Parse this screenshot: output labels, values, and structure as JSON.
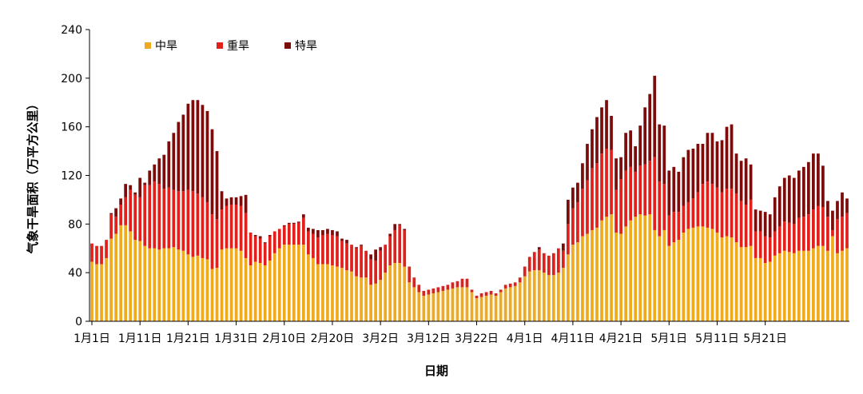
{
  "chart_data": {
    "type": "bar",
    "stacked": true,
    "xlabel": "日期",
    "ylabel": "气象干旱面积（万平方公里）",
    "ylim": [
      0,
      240
    ],
    "yticks": [
      0,
      40,
      80,
      120,
      160,
      200,
      240
    ],
    "grid": false,
    "legend_position": "top-left",
    "colors": {
      "moderate": "#F0AA1E",
      "severe": "#E0201B",
      "extreme": "#7B0C0C"
    },
    "xtick_labels": [
      "1月1日",
      "1月11日",
      "1月21日",
      "1月31日",
      "2月10日",
      "2月20日",
      "3月2日",
      "3月12日",
      "3月22日",
      "4月1日",
      "4月11日",
      "4月21日",
      "5月1日",
      "5月11日",
      "5月21日"
    ],
    "series": [
      {
        "name": "中旱",
        "key": "moderate",
        "values": [
          49,
          47,
          47,
          52,
          68,
          72,
          79,
          79,
          74,
          67,
          66,
          62,
          60,
          60,
          59,
          60,
          60,
          61,
          59,
          58,
          55,
          53,
          54,
          52,
          51,
          43,
          44,
          59,
          60,
          60,
          60,
          58,
          52,
          46,
          49,
          48,
          46,
          50,
          56,
          60,
          63,
          63,
          63,
          63,
          63,
          55,
          52,
          47,
          47,
          47,
          46,
          45,
          44,
          42,
          41,
          37,
          36,
          36,
          30,
          31,
          34,
          40,
          46,
          48,
          48,
          45,
          32,
          28,
          24,
          21,
          22,
          23,
          24,
          25,
          26,
          27,
          28,
          28,
          28,
          24,
          19,
          20,
          21,
          22,
          21,
          24,
          27,
          28,
          29,
          32,
          37,
          41,
          42,
          42,
          40,
          38,
          38,
          40,
          44,
          55,
          63,
          65,
          70,
          72,
          75,
          77,
          83,
          86,
          88,
          73,
          72,
          78,
          83,
          86,
          88,
          87,
          88,
          75,
          70,
          75,
          62,
          65,
          67,
          73,
          76,
          77,
          78,
          78,
          77,
          76,
          73,
          69,
          70,
          69,
          65,
          61,
          61,
          62,
          52,
          52,
          48,
          49,
          54,
          56,
          58,
          57,
          56,
          58,
          58,
          58,
          60,
          62,
          62,
          58,
          70,
          56,
          58,
          60
        ]
      },
      {
        "name": "重旱",
        "key": "severe",
        "values": [
          15,
          15,
          15,
          15,
          20,
          14,
          17,
          23,
          34,
          37,
          36,
          50,
          52,
          55,
          54,
          49,
          50,
          47,
          48,
          49,
          53,
          54,
          51,
          50,
          47,
          45,
          40,
          33,
          35,
          36,
          36,
          37,
          37,
          27,
          21,
          20,
          18,
          20,
          18,
          16,
          15,
          17,
          17,
          18,
          22,
          19,
          20,
          22,
          24,
          25,
          25,
          25,
          22,
          22,
          22,
          23,
          26,
          22,
          21,
          19,
          24,
          23,
          24,
          27,
          31,
          30,
          13,
          8,
          6,
          4,
          4,
          4,
          4,
          4,
          4,
          5,
          5,
          7,
          7,
          2,
          2,
          3,
          3,
          3,
          2,
          2,
          3,
          3,
          3,
          4,
          8,
          12,
          15,
          17,
          16,
          16,
          18,
          20,
          14,
          25,
          30,
          33,
          39,
          44,
          51,
          53,
          55,
          56,
          53,
          35,
          45,
          46,
          44,
          37,
          40,
          42,
          44,
          60,
          45,
          38,
          25,
          25,
          23,
          22,
          22,
          24,
          28,
          35,
          38,
          37,
          37,
          37,
          39,
          40,
          40,
          38,
          35,
          38,
          22,
          22,
          22,
          20,
          20,
          22,
          24,
          24,
          24,
          27,
          28,
          30,
          32,
          33,
          32,
          28,
          5,
          28,
          28,
          29
        ]
      },
      {
        "name": "特旱",
        "key": "extreme",
        "values": [
          0,
          0,
          0,
          0,
          1,
          7,
          5,
          11,
          4,
          2,
          16,
          2,
          12,
          14,
          21,
          28,
          38,
          47,
          57,
          63,
          71,
          75,
          77,
          76,
          75,
          70,
          56,
          15,
          6,
          6,
          6,
          8,
          15,
          0,
          1,
          2,
          1,
          1,
          0,
          0,
          1,
          1,
          1,
          1,
          3,
          3,
          4,
          6,
          4,
          4,
          4,
          4,
          2,
          3,
          0,
          1,
          1,
          0,
          4,
          9,
          3,
          0,
          2,
          5,
          1,
          1,
          0,
          0,
          0,
          0,
          0,
          0,
          0,
          0,
          0,
          0,
          0,
          0,
          0,
          0,
          0,
          0,
          0,
          0,
          0,
          0,
          0,
          0,
          0,
          0,
          0,
          0,
          0,
          2,
          0,
          0,
          0,
          0,
          6,
          20,
          17,
          16,
          21,
          30,
          32,
          38,
          38,
          40,
          28,
          26,
          18,
          31,
          30,
          21,
          33,
          47,
          55,
          67,
          47,
          48,
          37,
          37,
          33,
          40,
          43,
          41,
          40,
          33,
          40,
          42,
          38,
          43,
          51,
          53,
          33,
          33,
          38,
          29,
          18,
          17,
          20,
          19,
          28,
          33,
          36,
          39,
          38,
          39,
          41,
          43,
          46,
          43,
          34,
          13,
          16,
          15,
          20,
          12
        ]
      }
    ]
  }
}
